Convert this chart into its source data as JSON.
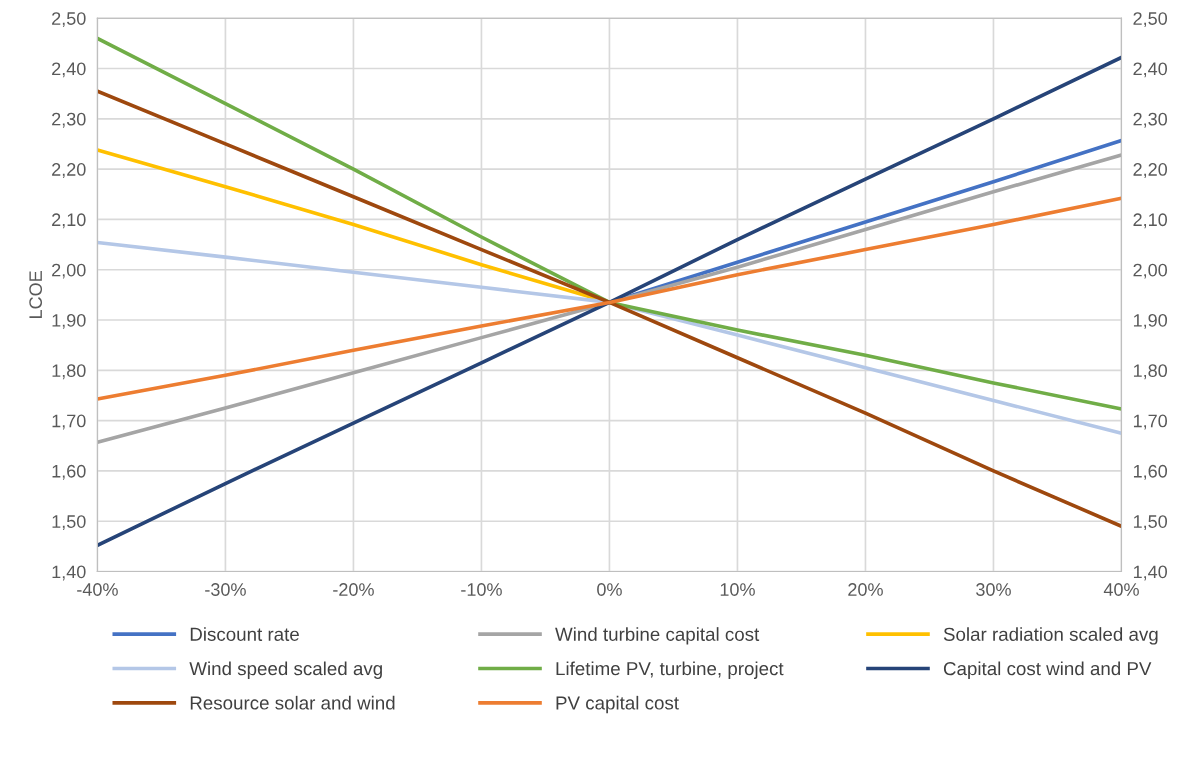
{
  "chart_data": {
    "type": "line",
    "ylabel": "LCOE",
    "x": [
      -0.4,
      -0.3,
      -0.2,
      -0.1,
      0,
      0.1,
      0.2,
      0.3,
      0.4
    ],
    "series": [
      {
        "name": "Discount rate",
        "color": "#4472c4",
        "values": [
          null,
          null,
          null,
          null,
          1.935,
          2.015,
          2.095,
          2.175,
          2.257
        ]
      },
      {
        "name": "Wind turbine capital cost",
        "color": "#a5a5a5",
        "values": [
          1.657,
          1.725,
          1.795,
          1.865,
          1.935,
          2.005,
          2.08,
          2.155,
          2.228
        ]
      },
      {
        "name": "Solar radiation scaled avg",
        "color": "#ffc000",
        "values": [
          2.238,
          2.165,
          2.09,
          2.01,
          1.935,
          null,
          null,
          null,
          null
        ]
      },
      {
        "name": "Wind speed scaled avg",
        "color": "#b4c7e7",
        "values": [
          2.054,
          2.025,
          1.995,
          1.965,
          1.935,
          1.87,
          1.805,
          1.74,
          1.675
        ]
      },
      {
        "name": "Lifetime PV, turbine, project",
        "color": "#70ad47",
        "values": [
          2.46,
          2.33,
          2.2,
          2.065,
          1.935,
          1.88,
          1.83,
          1.775,
          1.723
        ]
      },
      {
        "name": "Capital cost wind and PV",
        "color": "#264478",
        "values": [
          1.452,
          1.575,
          1.695,
          1.815,
          1.935,
          2.06,
          2.18,
          2.3,
          2.422
        ]
      },
      {
        "name": "Resource solar and wind",
        "color": "#9e480e",
        "values": [
          2.355,
          2.25,
          2.145,
          2.04,
          1.935,
          1.825,
          1.715,
          1.6,
          1.49
        ]
      },
      {
        "name": "PV capital cost",
        "color": "#ed7d31",
        "values": [
          1.743,
          1.79,
          1.84,
          1.888,
          1.935,
          1.99,
          2.04,
          2.09,
          2.142
        ]
      }
    ],
    "xlim": [
      -0.4,
      0.4
    ],
    "xticks": [
      {
        "value": -0.4,
        "label": "-40%"
      },
      {
        "value": -0.3,
        "label": "-30%"
      },
      {
        "value": -0.2,
        "label": "-20%"
      },
      {
        "value": -0.1,
        "label": "-10%"
      },
      {
        "value": 0,
        "label": "0%"
      },
      {
        "value": 0.1,
        "label": "10%"
      },
      {
        "value": 0.2,
        "label": "20%"
      },
      {
        "value": 0.3,
        "label": "30%"
      },
      {
        "value": 0.4,
        "label": "40%"
      }
    ],
    "ylim": [
      1.4,
      2.5
    ],
    "yticks": [
      {
        "value": 1.4,
        "label": "1,40"
      },
      {
        "value": 1.5,
        "label": "1,50"
      },
      {
        "value": 1.6,
        "label": "1,60"
      },
      {
        "value": 1.7,
        "label": "1,70"
      },
      {
        "value": 1.8,
        "label": "1,80"
      },
      {
        "value": 1.9,
        "label": "1,90"
      },
      {
        "value": 2.0,
        "label": "2,00"
      },
      {
        "value": 2.1,
        "label": "2,10"
      },
      {
        "value": 2.2,
        "label": "2,20"
      },
      {
        "value": 2.3,
        "label": "2,30"
      },
      {
        "value": 2.4,
        "label": "2,40"
      },
      {
        "value": 2.5,
        "label": "2,50"
      }
    ],
    "y2lim": [
      1.4,
      2.5
    ],
    "y2ticks": [
      {
        "value": 1.4,
        "label": "1,40"
      },
      {
        "value": 1.5,
        "label": "1,50"
      },
      {
        "value": 1.6,
        "label": "1,60"
      },
      {
        "value": 1.7,
        "label": "1,70"
      },
      {
        "value": 1.8,
        "label": "1,80"
      },
      {
        "value": 1.9,
        "label": "1,90"
      },
      {
        "value": 2.0,
        "label": "2,00"
      },
      {
        "value": 2.1,
        "label": "2,10"
      },
      {
        "value": 2.2,
        "label": "2,20"
      },
      {
        "value": 2.3,
        "label": "2,30"
      },
      {
        "value": 2.4,
        "label": "2,40"
      },
      {
        "value": 2.5,
        "label": "2,50"
      }
    ],
    "grid": true,
    "legend": "bottom",
    "marker": "none",
    "line_style": "solid"
  }
}
